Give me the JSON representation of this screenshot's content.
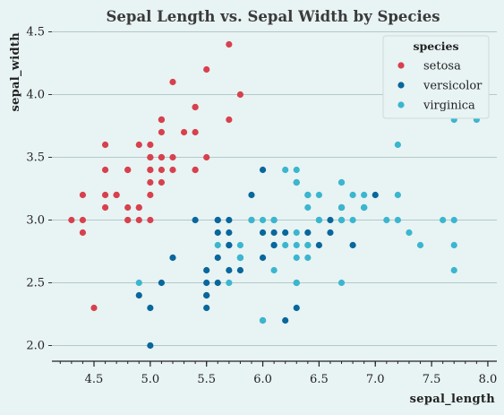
{
  "chart_data": {
    "type": "scatter",
    "title": "Sepal Length vs. Sepal Width by Species",
    "xlabel": "sepal_length",
    "ylabel": "sepal_width",
    "xlim": [
      4.2,
      8.0
    ],
    "ylim": [
      1.9,
      4.5
    ],
    "x_ticks": [
      "4.5",
      "5.0",
      "5.5",
      "6.0",
      "6.5",
      "7.0",
      "7.5",
      "8.0"
    ],
    "y_ticks": [
      "2.0",
      "2.5",
      "3.0",
      "3.5",
      "4.0",
      "4.5"
    ],
    "grid": "horizontal",
    "legend": {
      "title": "species",
      "placement": "top-right"
    },
    "series": [
      {
        "name": "setosa",
        "color": "#d7414e",
        "x": [
          5.1,
          4.9,
          4.7,
          4.6,
          5.0,
          5.4,
          4.6,
          5.0,
          4.4,
          4.9,
          5.4,
          4.8,
          4.8,
          4.3,
          5.8,
          5.7,
          5.4,
          5.1,
          5.7,
          5.1,
          5.4,
          5.1,
          4.6,
          5.1,
          4.8,
          5.0,
          5.0,
          5.2,
          5.2,
          4.7,
          4.8,
          5.4,
          5.2,
          5.5,
          4.9,
          5.0,
          5.5,
          4.9,
          4.4,
          5.1,
          5.0,
          4.5,
          4.4,
          5.0,
          5.1,
          4.8,
          5.1,
          4.6,
          5.3,
          5.0
        ],
        "y": [
          3.5,
          3.0,
          3.2,
          3.1,
          3.6,
          3.9,
          3.4,
          3.4,
          2.9,
          3.1,
          3.7,
          3.4,
          3.0,
          3.0,
          4.0,
          4.4,
          3.9,
          3.5,
          3.8,
          3.8,
          3.4,
          3.7,
          3.6,
          3.3,
          3.4,
          3.0,
          3.4,
          3.5,
          3.4,
          3.2,
          3.1,
          3.4,
          4.1,
          4.2,
          3.1,
          3.2,
          3.5,
          3.6,
          3.0,
          3.4,
          3.5,
          2.3,
          3.2,
          3.5,
          3.8,
          3.0,
          3.8,
          3.2,
          3.7,
          3.3
        ]
      },
      {
        "name": "versicolor",
        "color": "#08679c",
        "x": [
          7.0,
          6.4,
          6.9,
          5.5,
          6.5,
          5.7,
          6.3,
          4.9,
          6.6,
          5.2,
          5.0,
          5.9,
          6.0,
          6.1,
          5.6,
          6.7,
          5.6,
          5.8,
          6.2,
          5.6,
          5.9,
          6.1,
          6.3,
          6.1,
          6.4,
          6.6,
          6.8,
          6.7,
          6.0,
          5.7,
          5.5,
          5.5,
          5.8,
          6.0,
          5.4,
          6.0,
          6.7,
          6.3,
          5.6,
          5.5,
          5.5,
          6.1,
          5.8,
          5.0,
          5.6,
          5.7,
          5.7,
          6.2,
          5.1,
          5.7
        ],
        "y": [
          3.2,
          3.2,
          3.1,
          2.3,
          2.8,
          2.8,
          3.3,
          2.4,
          2.9,
          2.7,
          2.0,
          3.0,
          2.2,
          2.9,
          2.9,
          3.1,
          3.0,
          2.7,
          2.2,
          2.5,
          3.2,
          2.8,
          2.5,
          2.8,
          2.9,
          3.0,
          2.8,
          3.0,
          2.9,
          2.6,
          2.4,
          2.4,
          2.7,
          2.7,
          3.0,
          3.4,
          3.1,
          2.3,
          3.0,
          2.5,
          2.6,
          3.0,
          2.6,
          2.3,
          2.7,
          3.0,
          2.9,
          2.9,
          2.5,
          2.8
        ]
      },
      {
        "name": "virginica",
        "color": "#3bb6cf",
        "x": [
          6.3,
          5.8,
          7.1,
          6.3,
          6.5,
          7.6,
          4.9,
          7.3,
          6.7,
          7.2,
          6.5,
          6.4,
          6.8,
          5.7,
          5.8,
          6.4,
          6.5,
          7.7,
          7.7,
          6.0,
          6.9,
          5.6,
          7.7,
          6.3,
          6.7,
          7.2,
          6.2,
          6.1,
          6.4,
          7.2,
          7.4,
          7.9,
          6.4,
          6.3,
          6.1,
          7.7,
          6.3,
          6.4,
          6.0,
          6.9,
          6.7,
          6.9,
          5.8,
          6.8,
          6.7,
          6.7,
          6.3,
          6.5,
          6.2,
          5.9
        ],
        "y": [
          3.3,
          2.7,
          3.0,
          2.9,
          3.0,
          3.0,
          2.5,
          2.9,
          2.5,
          3.6,
          3.2,
          2.7,
          3.0,
          2.5,
          2.8,
          3.2,
          3.0,
          3.8,
          2.6,
          2.2,
          3.2,
          2.8,
          2.8,
          2.7,
          3.3,
          3.2,
          2.8,
          3.0,
          2.8,
          3.0,
          2.8,
          3.8,
          2.8,
          2.8,
          2.6,
          3.0,
          3.4,
          3.1,
          3.0,
          3.1,
          3.1,
          3.1,
          2.7,
          3.2,
          3.3,
          3.0,
          2.5,
          3.0,
          3.4,
          3.0
        ]
      }
    ]
  }
}
